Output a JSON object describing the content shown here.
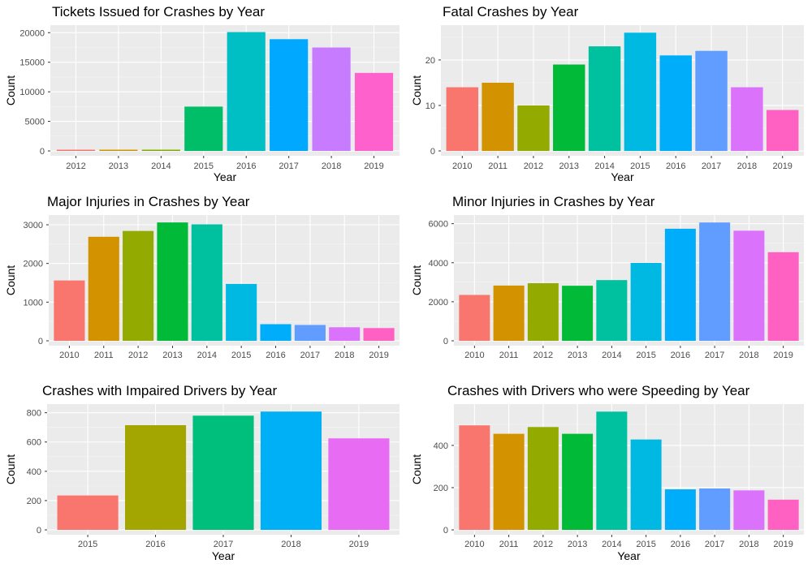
{
  "palette": [
    "#F8766D",
    "#D39200",
    "#93AA00",
    "#00BA38",
    "#00C19F",
    "#00B9E3",
    "#00ADFA",
    "#619CFF",
    "#DB72FB",
    "#FF61C3"
  ],
  "chart_data": [
    {
      "type": "bar",
      "title": "Tickets Issued for Crashes by Year",
      "xlabel": "Year",
      "ylabel": "Count",
      "categories": [
        "2012",
        "2013",
        "2014",
        "2015",
        "2016",
        "2017",
        "2018",
        "2019"
      ],
      "values": [
        130,
        160,
        190,
        7500,
        20100,
        18900,
        17500,
        13200
      ],
      "colors": [
        "#F8766D",
        "#CD9600",
        "#7CAE00",
        "#00BE67",
        "#00BFC4",
        "#00A9FF",
        "#C77CFF",
        "#FF61CC"
      ],
      "yticks": [
        0,
        5000,
        10000,
        15000,
        20000
      ],
      "ylim": [
        0,
        21000
      ],
      "grid": true,
      "legend": "none"
    },
    {
      "type": "bar",
      "title": "Fatal Crashes by Year",
      "xlabel": "Year",
      "ylabel": "Count",
      "categories": [
        "2010",
        "2011",
        "2012",
        "2013",
        "2014",
        "2015",
        "2016",
        "2017",
        "2018",
        "2019"
      ],
      "values": [
        14,
        15,
        10,
        19,
        23,
        26,
        21,
        22,
        14,
        9
      ],
      "colors": [
        "#F8766D",
        "#D39200",
        "#93AA00",
        "#00BA38",
        "#00C19F",
        "#00B9E3",
        "#00ADFA",
        "#619CFF",
        "#DB72FB",
        "#FF61C3"
      ],
      "yticks": [
        0,
        10,
        20
      ],
      "ylim": [
        0,
        27.3
      ],
      "grid": true,
      "legend": "none"
    },
    {
      "type": "bar",
      "title": "Major Injuries in Crashes by Year",
      "xlabel": "Year",
      "ylabel": "Count",
      "categories": [
        "2010",
        "2011",
        "2012",
        "2013",
        "2014",
        "2015",
        "2016",
        "2017",
        "2018",
        "2019"
      ],
      "values": [
        1560,
        2690,
        2840,
        3060,
        3010,
        1470,
        430,
        410,
        350,
        330
      ],
      "colors": [
        "#F8766D",
        "#D39200",
        "#93AA00",
        "#00BA38",
        "#00C19F",
        "#00B9E3",
        "#00ADFA",
        "#619CFF",
        "#DB72FB",
        "#FF61C3"
      ],
      "yticks": [
        0,
        1000,
        2000,
        3000
      ],
      "ylim": [
        0,
        3210
      ],
      "grid": true,
      "legend": "none"
    },
    {
      "type": "bar",
      "title": "Minor Injuries in Crashes by Year",
      "xlabel": "Year",
      "ylabel": "Count",
      "categories": [
        "2010",
        "2011",
        "2012",
        "2013",
        "2014",
        "2015",
        "2016",
        "2017",
        "2018",
        "2019"
      ],
      "values": [
        2350,
        2830,
        2950,
        2820,
        3110,
        3990,
        5740,
        6060,
        5640,
        4540
      ],
      "colors": [
        "#F8766D",
        "#D39200",
        "#93AA00",
        "#00BA38",
        "#00C19F",
        "#00B9E3",
        "#00ADFA",
        "#619CFF",
        "#DB72FB",
        "#FF61C3"
      ],
      "yticks": [
        0,
        2000,
        4000,
        6000
      ],
      "ylim": [
        0,
        6360
      ],
      "grid": true,
      "legend": "none"
    },
    {
      "type": "bar",
      "title": "Crashes with Impaired Drivers by Year",
      "xlabel": "Year",
      "ylabel": "Count",
      "categories": [
        "2015",
        "2016",
        "2017",
        "2018",
        "2019"
      ],
      "values": [
        235,
        715,
        780,
        808,
        625
      ],
      "colors": [
        "#F8766D",
        "#A3A500",
        "#00BF7D",
        "#00B0F6",
        "#E76BF3"
      ],
      "yticks": [
        0,
        200,
        400,
        600,
        800
      ],
      "ylim": [
        0,
        848
      ],
      "grid": true,
      "legend": "none"
    },
    {
      "type": "bar",
      "title": "Crashes with Drivers who were Speeding by Year",
      "xlabel": "Year",
      "ylabel": "Count",
      "categories": [
        "2010",
        "2011",
        "2012",
        "2013",
        "2014",
        "2015",
        "2016",
        "2017",
        "2018",
        "2019"
      ],
      "values": [
        495,
        455,
        487,
        455,
        560,
        428,
        192,
        196,
        187,
        143
      ],
      "colors": [
        "#F8766D",
        "#D39200",
        "#93AA00",
        "#00BA38",
        "#00C19F",
        "#00B9E3",
        "#00ADFA",
        "#619CFF",
        "#DB72FB",
        "#FF61C3"
      ],
      "yticks": [
        0,
        200,
        400
      ],
      "ylim": [
        0,
        588
      ],
      "grid": true,
      "legend": "none"
    }
  ]
}
